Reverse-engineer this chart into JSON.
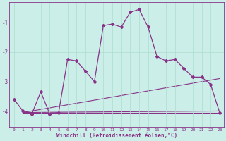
{
  "title": "",
  "xlabel": "Windchill (Refroidissement éolien,°C)",
  "ylabel": "",
  "bg_color": "#cceee8",
  "line_color": "#883388",
  "grid_color": "#aaddcc",
  "xlim": [
    -0.5,
    23.5
  ],
  "ylim": [
    -4.55,
    -0.3
  ],
  "yticks": [
    -4,
    -3,
    -2,
    -1
  ],
  "xticks": [
    0,
    1,
    2,
    3,
    4,
    5,
    6,
    7,
    8,
    9,
    10,
    11,
    12,
    13,
    14,
    15,
    16,
    17,
    18,
    19,
    20,
    21,
    22,
    23
  ],
  "main_x": [
    0,
    1,
    2,
    3,
    4,
    5,
    6,
    7,
    8,
    9,
    10,
    11,
    12,
    13,
    14,
    15,
    16,
    17,
    18,
    19,
    20,
    21,
    22,
    23
  ],
  "main_y": [
    -3.6,
    -4.0,
    -4.1,
    -3.35,
    -4.1,
    -4.05,
    -2.25,
    -2.3,
    -2.65,
    -3.0,
    -1.1,
    -1.05,
    -1.15,
    -0.65,
    -0.55,
    -1.15,
    -2.15,
    -2.3,
    -2.25,
    -2.55,
    -2.85,
    -2.85,
    -3.1,
    -4.05
  ],
  "line1_x": [
    1,
    23
  ],
  "line1_y": [
    -4.05,
    -4.05
  ],
  "line2_x": [
    1,
    23
  ],
  "line2_y": [
    -4.05,
    -4.0
  ],
  "line3_x": [
    1,
    23
  ],
  "line3_y": [
    -4.05,
    -2.9
  ],
  "marker_style": "D",
  "markersize": 2.0,
  "linewidth": 0.9,
  "thin_linewidth": 0.8,
  "xlabel_fontsize": 5.5,
  "xtick_fontsize": 4.5,
  "ytick_fontsize": 5.5
}
